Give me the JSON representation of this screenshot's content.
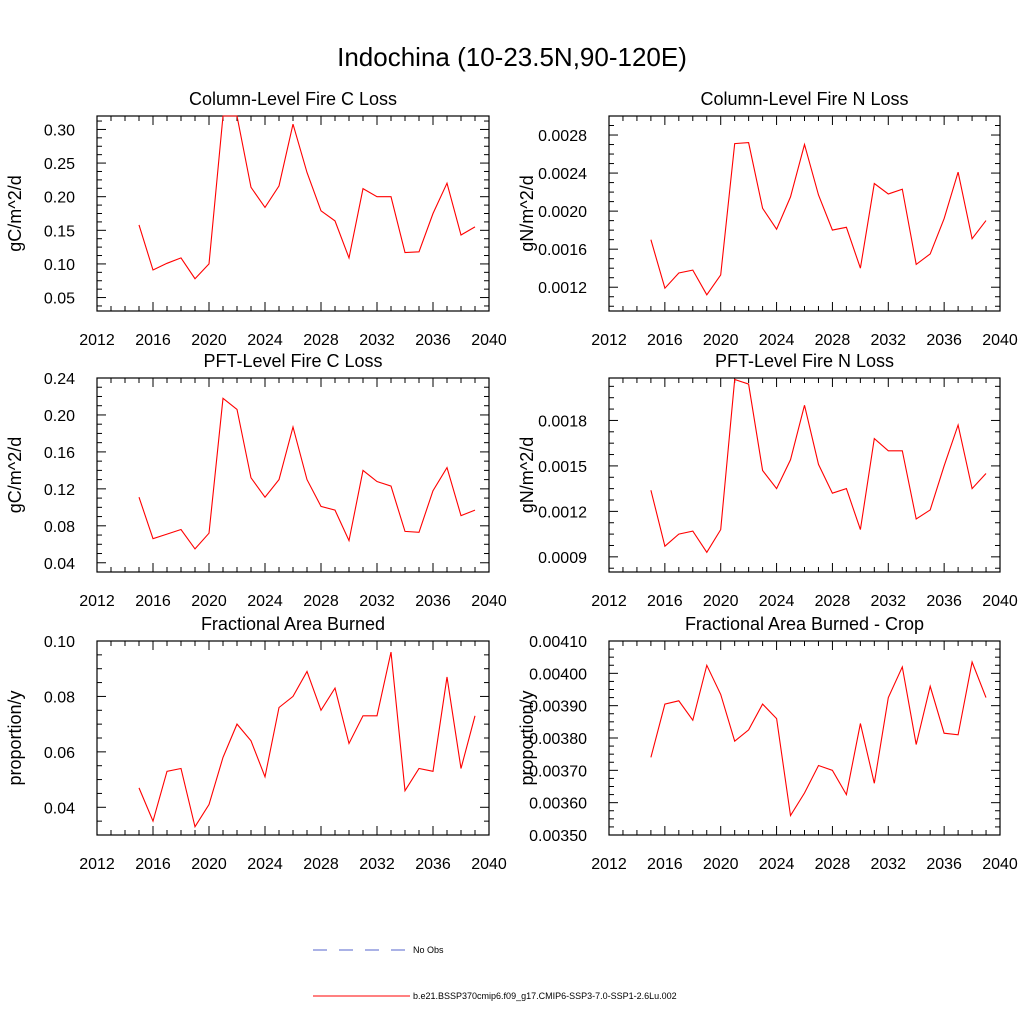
{
  "figure": {
    "title": "Indochina (10-23.5N,90-120E)",
    "legend": [
      {
        "label": "No Obs",
        "color": "#5566cc",
        "dash": true
      },
      {
        "label": "b.e21.BSSP370cmip6.f09_g17.CMIP6-SSP3-7.0-SSP1-2.6Lu.002",
        "color": "#ff0000",
        "dash": false
      }
    ]
  },
  "chart_data": [
    {
      "type": "line",
      "title": "Column-Level Fire C Loss",
      "ylabel": "gC/m^2/d",
      "xlim": [
        2012,
        2040
      ],
      "xticks": [
        "2012",
        "2016",
        "2020",
        "2024",
        "2028",
        "2032",
        "2036",
        "2040"
      ],
      "ylim": [
        0.03,
        0.32
      ],
      "yticks": [
        "0.05",
        "0.10",
        "0.15",
        "0.20",
        "0.25",
        "0.30"
      ],
      "series": [
        {
          "color": "#ff0000",
          "x": [
            2015,
            2016,
            2017,
            2018,
            2019,
            2020,
            2021,
            2022,
            2023,
            2024,
            2025,
            2026,
            2027,
            2028,
            2029,
            2030,
            2031,
            2032,
            2033,
            2034,
            2035,
            2036,
            2037,
            2038,
            2039
          ],
          "values": [
            0.158,
            0.091,
            0.101,
            0.109,
            0.078,
            0.1,
            0.32,
            0.32,
            0.214,
            0.184,
            0.216,
            0.308,
            0.236,
            0.179,
            0.164,
            0.109,
            0.212,
            0.2,
            0.2,
            0.117,
            0.118,
            0.175,
            0.22,
            0.143,
            0.155
          ]
        }
      ]
    },
    {
      "type": "line",
      "title": "Column-Level Fire N Loss",
      "ylabel": "gN/m^2/d",
      "xlim": [
        2012,
        2040
      ],
      "xticks": [
        "2012",
        "2016",
        "2020",
        "2024",
        "2028",
        "2032",
        "2036",
        "2040"
      ],
      "ylim": [
        0.00095,
        0.003
      ],
      "yticks": [
        "0.0012",
        "0.0016",
        "0.0020",
        "0.0024",
        "0.0028"
      ],
      "series": [
        {
          "color": "#ff0000",
          "x": [
            2015,
            2016,
            2017,
            2018,
            2019,
            2020,
            2021,
            2022,
            2023,
            2024,
            2025,
            2026,
            2027,
            2028,
            2029,
            2030,
            2031,
            2032,
            2033,
            2034,
            2035,
            2036,
            2037,
            2038,
            2039
          ],
          "values": [
            0.0017,
            0.00119,
            0.00135,
            0.00138,
            0.00112,
            0.00133,
            0.00271,
            0.00272,
            0.00203,
            0.00181,
            0.00215,
            0.0027,
            0.00217,
            0.0018,
            0.00183,
            0.0014,
            0.00229,
            0.00218,
            0.00223,
            0.00144,
            0.00155,
            0.00192,
            0.00241,
            0.00171,
            0.0019
          ]
        }
      ]
    },
    {
      "type": "line",
      "title": "PFT-Level Fire C Loss",
      "ylabel": "gC/m^2/d",
      "xlim": [
        2012,
        2040
      ],
      "xticks": [
        "2012",
        "2016",
        "2020",
        "2024",
        "2028",
        "2032",
        "2036",
        "2040"
      ],
      "ylim": [
        0.03,
        0.24
      ],
      "yticks": [
        "0.04",
        "0.08",
        "0.12",
        "0.16",
        "0.20",
        "0.24"
      ],
      "series": [
        {
          "color": "#ff0000",
          "x": [
            2015,
            2016,
            2017,
            2018,
            2019,
            2020,
            2021,
            2022,
            2023,
            2024,
            2025,
            2026,
            2027,
            2028,
            2029,
            2030,
            2031,
            2032,
            2033,
            2034,
            2035,
            2036,
            2037,
            2038,
            2039
          ],
          "values": [
            0.111,
            0.066,
            0.071,
            0.076,
            0.055,
            0.072,
            0.218,
            0.206,
            0.132,
            0.111,
            0.13,
            0.187,
            0.13,
            0.101,
            0.097,
            0.064,
            0.14,
            0.128,
            0.123,
            0.074,
            0.073,
            0.118,
            0.143,
            0.091,
            0.097
          ]
        }
      ]
    },
    {
      "type": "line",
      "title": "PFT-Level Fire N Loss",
      "ylabel": "gN/m^2/d",
      "xlim": [
        2012,
        2040
      ],
      "xticks": [
        "2012",
        "2016",
        "2020",
        "2024",
        "2028",
        "2032",
        "2036",
        "2040"
      ],
      "ylim": [
        0.0008,
        0.00208
      ],
      "yticks": [
        "0.0009",
        "0.0012",
        "0.0015",
        "0.0018"
      ],
      "series": [
        {
          "color": "#ff0000",
          "x": [
            2015,
            2016,
            2017,
            2018,
            2019,
            2020,
            2021,
            2022,
            2023,
            2024,
            2025,
            2026,
            2027,
            2028,
            2029,
            2030,
            2031,
            2032,
            2033,
            2034,
            2035,
            2036,
            2037,
            2038,
            2039
          ],
          "values": [
            0.00134,
            0.00097,
            0.00105,
            0.00107,
            0.00093,
            0.00108,
            0.00207,
            0.00204,
            0.00147,
            0.00135,
            0.00154,
            0.0019,
            0.00151,
            0.00132,
            0.00135,
            0.00108,
            0.00168,
            0.0016,
            0.0016,
            0.00115,
            0.00121,
            0.0015,
            0.00177,
            0.00135,
            0.00145
          ]
        }
      ]
    },
    {
      "type": "line",
      "title": "Fractional Area Burned",
      "ylabel": "proportion/y",
      "xlim": [
        2012,
        2040
      ],
      "xticks": [
        "2012",
        "2016",
        "2020",
        "2024",
        "2028",
        "2032",
        "2036",
        "2040"
      ],
      "ylim": [
        0.03,
        0.1
      ],
      "yticks": [
        "0.04",
        "0.06",
        "0.08",
        "0.10"
      ],
      "series": [
        {
          "color": "#ff0000",
          "x": [
            2015,
            2016,
            2017,
            2018,
            2019,
            2020,
            2021,
            2022,
            2023,
            2024,
            2025,
            2026,
            2027,
            2028,
            2029,
            2030,
            2031,
            2032,
            2033,
            2034,
            2035,
            2036,
            2037,
            2038,
            2039
          ],
          "values": [
            0.047,
            0.035,
            0.053,
            0.054,
            0.033,
            0.041,
            0.058,
            0.07,
            0.064,
            0.051,
            0.076,
            0.08,
            0.089,
            0.075,
            0.083,
            0.063,
            0.073,
            0.073,
            0.096,
            0.046,
            0.054,
            0.053,
            0.087,
            0.054,
            0.073
          ]
        }
      ]
    },
    {
      "type": "line",
      "title": "Fractional Area Burned - Crop",
      "ylabel": "proportion/y",
      "xlim": [
        2012,
        2040
      ],
      "xticks": [
        "2012",
        "2016",
        "2020",
        "2024",
        "2028",
        "2032",
        "2036",
        "2040"
      ],
      "ylim": [
        0.0035,
        0.0041
      ],
      "yticks": [
        "0.00350",
        "0.00360",
        "0.00370",
        "0.00380",
        "0.00390",
        "0.00400",
        "0.00410"
      ],
      "series": [
        {
          "color": "#ff0000",
          "x": [
            2015,
            2016,
            2017,
            2018,
            2019,
            2020,
            2021,
            2022,
            2023,
            2024,
            2025,
            2026,
            2027,
            2028,
            2029,
            2030,
            2031,
            2032,
            2033,
            2034,
            2035,
            2036,
            2037,
            2038,
            2039
          ],
          "values": [
            0.00374,
            0.003905,
            0.003915,
            0.003855,
            0.004025,
            0.003935,
            0.00379,
            0.003825,
            0.003905,
            0.00386,
            0.00356,
            0.00363,
            0.003715,
            0.0037,
            0.003625,
            0.003845,
            0.00366,
            0.003925,
            0.00402,
            0.00378,
            0.00396,
            0.003815,
            0.00381,
            0.004035,
            0.003925
          ]
        }
      ]
    }
  ]
}
